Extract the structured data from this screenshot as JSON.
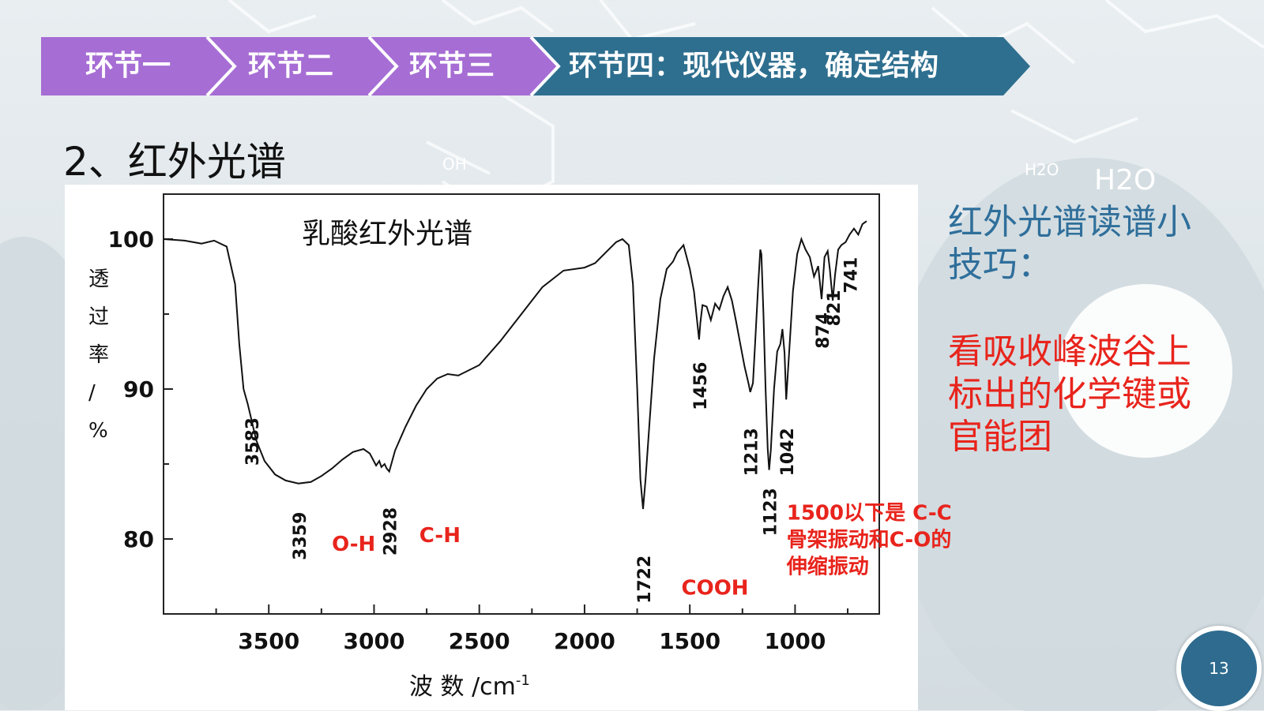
{
  "steps": [
    {
      "label": "环节一",
      "color": "#a66dd4"
    },
    {
      "label": "环节二",
      "color": "#a66dd4"
    },
    {
      "label": "环节三",
      "color": "#a66dd4"
    },
    {
      "label": "环节四：现代仪器，确定结构",
      "color": "#2e6f8f"
    }
  ],
  "section_title": "2、红外光谱",
  "background_text": [
    "OH",
    "H2O",
    "H2O"
  ],
  "tips": {
    "heading": "红外光谱读谱小技巧：",
    "body": "看吸收峰波谷上标出的化学键或官能团"
  },
  "page_number": "13",
  "chart_data": {
    "type": "line",
    "title": "乳酸红外光谱",
    "xlabel": "波 数 /cm",
    "xlabel_sup": "-1",
    "ylabel": [
      "透",
      "过",
      "率",
      "/",
      "%"
    ],
    "xlim": [
      4000,
      600
    ],
    "ylim": [
      75,
      103
    ],
    "xticks": [
      3500,
      3000,
      2500,
      2000,
      1500,
      1000
    ],
    "yticks": [
      100,
      90,
      80
    ],
    "series": [
      {
        "color": "#111111",
        "x": [
          4000,
          3900,
          3820,
          3760,
          3700,
          3660,
          3640,
          3620,
          3600,
          3583,
          3560,
          3520,
          3470,
          3420,
          3359,
          3300,
          3250,
          3200,
          3150,
          3100,
          3050,
          3020,
          2990,
          2975,
          2965,
          2950,
          2940,
          2928,
          2900,
          2850,
          2800,
          2750,
          2700,
          2650,
          2600,
          2500,
          2400,
          2300,
          2200,
          2100,
          2000,
          1950,
          1900,
          1850,
          1820,
          1790,
          1770,
          1750,
          1735,
          1722,
          1710,
          1690,
          1670,
          1640,
          1610,
          1580,
          1560,
          1530,
          1500,
          1480,
          1465,
          1456,
          1450,
          1440,
          1420,
          1400,
          1380,
          1360,
          1340,
          1320,
          1300,
          1280,
          1260,
          1240,
          1220,
          1213,
          1200,
          1190,
          1175,
          1165,
          1160,
          1150,
          1140,
          1130,
          1123,
          1115,
          1100,
          1085,
          1070,
          1060,
          1050,
          1042,
          1030,
          1010,
          990,
          970,
          950,
          930,
          910,
          890,
          874,
          860,
          845,
          835,
          821,
          810,
          795,
          780,
          760,
          741,
          720,
          700,
          680,
          660
        ],
        "y": [
          100.0,
          99.9,
          99.7,
          99.9,
          99.5,
          97.0,
          93.0,
          90.0,
          89.0,
          88.0,
          86.6,
          85.2,
          84.3,
          83.9,
          83.7,
          83.8,
          84.2,
          84.7,
          85.3,
          85.8,
          86.0,
          85.7,
          84.9,
          85.2,
          84.8,
          85.0,
          84.7,
          84.5,
          85.9,
          87.5,
          88.9,
          90.0,
          90.7,
          91.0,
          90.9,
          91.6,
          93.2,
          95.0,
          96.8,
          97.9,
          98.1,
          98.4,
          99.1,
          99.8,
          100.0,
          99.6,
          97.0,
          90.0,
          84.0,
          82.0,
          84.0,
          88.0,
          92.0,
          96.0,
          98.0,
          98.5,
          99.1,
          99.6,
          98.0,
          96.5,
          94.5,
          93.3,
          94.4,
          95.6,
          95.5,
          94.6,
          95.7,
          95.3,
          96.2,
          96.8,
          95.9,
          94.5,
          93.0,
          91.5,
          90.3,
          89.8,
          90.4,
          93.0,
          97.0,
          99.3,
          99.0,
          95.0,
          90.0,
          86.0,
          84.6,
          86.0,
          90.0,
          92.5,
          93.0,
          94.0,
          92.4,
          89.3,
          92.0,
          96.5,
          99.0,
          100.0,
          99.3,
          98.8,
          97.5,
          98.2,
          96.0,
          98.8,
          99.2,
          98.0,
          95.9,
          97.6,
          99.3,
          99.6,
          99.8,
          100.3,
          100.7,
          100.3,
          101.0,
          101.2
        ]
      }
    ],
    "peak_labels": [
      {
        "label": "3583",
        "x": 3583,
        "y": 86.5
      },
      {
        "label": "3359",
        "x": 3359,
        "y": 80.2
      },
      {
        "label": "2928",
        "x": 2928,
        "y": 80.5
      },
      {
        "label": "1722",
        "x": 1722,
        "y": 77.3
      },
      {
        "label": "1456",
        "x": 1456,
        "y": 90.2
      },
      {
        "label": "1213",
        "x": 1213,
        "y": 85.8
      },
      {
        "label": "1123",
        "x": 1123,
        "y": 81.8
      },
      {
        "label": "1042",
        "x": 1042,
        "y": 85.8
      },
      {
        "label": "874",
        "x": 874,
        "y": 93.9
      },
      {
        "label": "821",
        "x": 821,
        "y": 95.4
      },
      {
        "label": "741",
        "x": 741,
        "y": 97.6
      }
    ],
    "annotations": [
      {
        "text": "O-H",
        "x": 3200,
        "y": 79.2
      },
      {
        "text": "C-H",
        "x": 2785,
        "y": 79.8
      },
      {
        "text": "COOH",
        "x": 1540,
        "y": 76.3
      },
      {
        "text": "1500以下是 C-C",
        "x": 1040,
        "y": 81.3
      },
      {
        "text": "骨架振动和C-O的",
        "x": 1040,
        "y": 79.5
      },
      {
        "text": "伸缩振动",
        "x": 1040,
        "y": 77.7
      }
    ],
    "annotation_color": "#e8241c",
    "grid": false
  }
}
